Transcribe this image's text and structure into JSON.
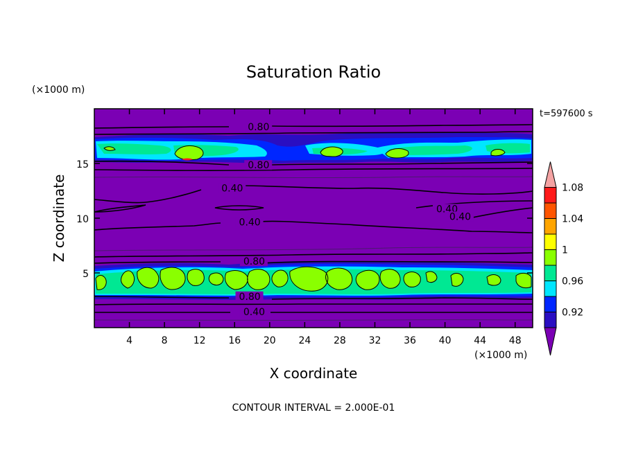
{
  "chart_data": {
    "type": "heatmap",
    "title": "Saturation Ratio",
    "xlabel": "X coordinate",
    "ylabel": "Z coordinate",
    "x_unit": "(×1000 m)",
    "y_unit": "(×1000 m)",
    "time_label": "t=597600 s",
    "footer": "CONTOUR INTERVAL = 2.000E-01",
    "xlim": [
      0,
      50
    ],
    "ylim": [
      0,
      20
    ],
    "x_ticks": [
      {
        "v": 4,
        "label": "4"
      },
      {
        "v": 8,
        "label": "8"
      },
      {
        "v": 12,
        "label": "12"
      },
      {
        "v": 16,
        "label": "16"
      },
      {
        "v": 20,
        "label": "20"
      },
      {
        "v": 24,
        "label": "24"
      },
      {
        "v": 28,
        "label": "28"
      },
      {
        "v": 32,
        "label": "32"
      },
      {
        "v": 36,
        "label": "36"
      },
      {
        "v": 40,
        "label": "40"
      },
      {
        "v": 44,
        "label": "44"
      },
      {
        "v": 48,
        "label": "48"
      }
    ],
    "y_ticks": [
      {
        "v": 5,
        "label": "5"
      },
      {
        "v": 10,
        "label": "10"
      },
      {
        "v": 15,
        "label": "15"
      }
    ],
    "colorbar": {
      "colors": [
        "#7b00b4",
        "#2a0ec2",
        "#0026ff",
        "#00e6ff",
        "#00e893",
        "#8aff00",
        "#ffff00",
        "#ffa500",
        "#ff5500",
        "#ff1a1a",
        "#f4a3a3"
      ],
      "labels": [
        {
          "index": 1,
          "label": "0.92"
        },
        {
          "index": 3,
          "label": "0.96"
        },
        {
          "index": 5,
          "label": "1"
        },
        {
          "index": 7,
          "label": "1.04"
        },
        {
          "index": 9,
          "label": "1.08"
        }
      ]
    },
    "contour_labels": [
      {
        "x": 17.5,
        "z": 18.3,
        "label": "0.80"
      },
      {
        "x": 17.5,
        "z": 14.8,
        "label": "0.80"
      },
      {
        "x": 14.5,
        "z": 12.7,
        "label": "0.40"
      },
      {
        "x": 39.0,
        "z": 10.8,
        "label": "0.40"
      },
      {
        "x": 40.5,
        "z": 10.1,
        "label": "0.40"
      },
      {
        "x": 16.5,
        "z": 9.6,
        "label": "0.40"
      },
      {
        "x": 17.0,
        "z": 6.0,
        "label": "0.80"
      },
      {
        "x": 16.5,
        "z": 2.8,
        "label": "0.80"
      },
      {
        "x": 17.0,
        "z": 1.4,
        "label": "0.40"
      }
    ]
  }
}
